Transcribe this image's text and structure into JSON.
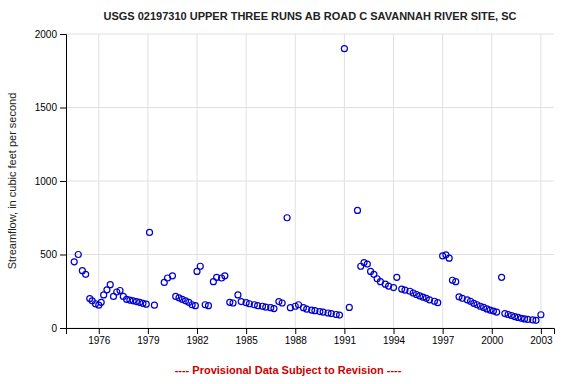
{
  "chart_data": {
    "type": "scatter",
    "title": "USGS 02197310 UPPER THREE RUNS AB ROAD C SAVANNAH RIVER SITE, SC",
    "ylabel": "Streamflow, in cubic feet per second",
    "annotations": [
      {
        "text": "---- Provisional Data Subject to Revision ----",
        "color": "#cc0000"
      }
    ],
    "color": "#0000cc",
    "marker": "open-circle",
    "grid": true,
    "xlim": [
      1974.0,
      2003.8
    ],
    "ylim": [
      0,
      2000
    ],
    "xticks": [
      1976,
      1979,
      1982,
      1985,
      1988,
      1991,
      1994,
      1997,
      2000,
      2003
    ],
    "yticks": [
      0,
      500,
      1000,
      1500,
      2000
    ],
    "x": [
      1974.5,
      1974.75,
      1975.0,
      1975.2,
      1975.45,
      1975.6,
      1975.8,
      1976.0,
      1976.15,
      1976.3,
      1976.5,
      1976.7,
      1976.9,
      1977.1,
      1977.3,
      1977.5,
      1977.7,
      1977.9,
      1978.1,
      1978.3,
      1978.5,
      1978.7,
      1978.9,
      1979.1,
      1979.4,
      1980.0,
      1980.2,
      1980.5,
      1980.7,
      1980.9,
      1981.1,
      1981.3,
      1981.5,
      1981.7,
      1981.9,
      1982.0,
      1982.2,
      1982.5,
      1982.7,
      1983.0,
      1983.2,
      1983.5,
      1983.7,
      1984.0,
      1984.2,
      1984.5,
      1984.7,
      1985.0,
      1985.2,
      1985.5,
      1985.7,
      1986.0,
      1986.2,
      1986.5,
      1986.7,
      1987.0,
      1987.2,
      1987.5,
      1987.7,
      1988.0,
      1988.2,
      1988.5,
      1988.7,
      1989.0,
      1989.2,
      1989.5,
      1989.7,
      1990.0,
      1990.2,
      1990.5,
      1990.7,
      1991.0,
      1991.3,
      1991.8,
      1992.0,
      1992.2,
      1992.4,
      1992.6,
      1992.8,
      1993.0,
      1993.2,
      1993.5,
      1993.7,
      1994.0,
      1994.2,
      1994.5,
      1994.7,
      1995.0,
      1995.2,
      1995.4,
      1995.6,
      1995.8,
      1996.0,
      1996.2,
      1996.5,
      1996.7,
      1997.0,
      1997.2,
      1997.4,
      1997.6,
      1997.8,
      1998.0,
      1998.2,
      1998.5,
      1998.7,
      1998.9,
      1999.1,
      1999.3,
      1999.5,
      1999.7,
      1999.9,
      2000.1,
      2000.3,
      2000.6,
      2000.8,
      2001.0,
      2001.2,
      2001.4,
      2001.6,
      2001.8,
      2002.0,
      2002.2,
      2002.5,
      2002.7,
      2003.0
    ],
    "y": [
      450,
      500,
      390,
      365,
      200,
      185,
      165,
      155,
      175,
      225,
      260,
      295,
      215,
      245,
      255,
      215,
      195,
      190,
      185,
      180,
      175,
      168,
      162,
      650,
      155,
      310,
      340,
      355,
      215,
      205,
      195,
      185,
      175,
      158,
      152,
      385,
      420,
      158,
      152,
      315,
      345,
      340,
      355,
      175,
      170,
      225,
      180,
      172,
      165,
      158,
      152,
      148,
      142,
      138,
      132,
      180,
      170,
      750,
      138,
      148,
      158,
      138,
      128,
      122,
      118,
      112,
      108,
      102,
      98,
      92,
      88,
      1900,
      140,
      800,
      420,
      445,
      435,
      385,
      365,
      335,
      315,
      298,
      285,
      275,
      345,
      265,
      258,
      250,
      238,
      228,
      218,
      210,
      202,
      192,
      182,
      172,
      490,
      498,
      475,
      325,
      315,
      212,
      202,
      192,
      182,
      168,
      158,
      148,
      140,
      130,
      122,
      115,
      108,
      345,
      98,
      92,
      85,
      78,
      72,
      66,
      62,
      58,
      55,
      52,
      90
    ]
  }
}
